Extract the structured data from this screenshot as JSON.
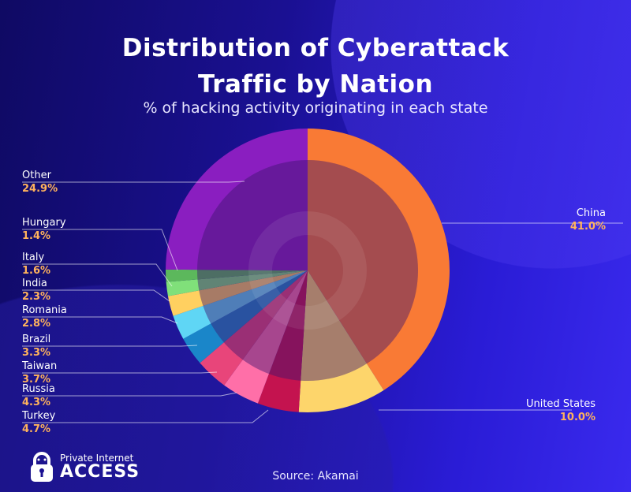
{
  "chart_data": {
    "type": "pie",
    "title_line1": "Distribution of Cyberattack",
    "title_line2": "Traffic by Nation",
    "subtitle": "% of hacking activity originating in each state",
    "source": "Source:  Akamai",
    "slices": [
      {
        "label": "China",
        "value": 41.0,
        "display": "41.0%",
        "color": "#f97a35"
      },
      {
        "label": "United States",
        "value": 10.0,
        "display": "10.0%",
        "color": "#fdd56b"
      },
      {
        "label": "Turkey",
        "value": 4.7,
        "display": "4.7%",
        "color": "#c4134f"
      },
      {
        "label": "Russia",
        "value": 4.3,
        "display": "4.3%",
        "color": "#ff6fa8"
      },
      {
        "label": "Taiwan",
        "value": 3.7,
        "display": "3.7%",
        "color": "#e8457a"
      },
      {
        "label": "Brazil",
        "value": 3.3,
        "display": "3.3%",
        "color": "#1a86c9"
      },
      {
        "label": "Romania",
        "value": 2.8,
        "display": "2.8%",
        "color": "#5fd6f5"
      },
      {
        "label": "India",
        "value": 2.3,
        "display": "2.3%",
        "color": "#ffd060"
      },
      {
        "label": "Italy",
        "value": 1.6,
        "display": "1.6%",
        "color": "#80e07a"
      },
      {
        "label": "Hungary",
        "value": 1.4,
        "display": "1.4%",
        "color": "#5cb85c"
      },
      {
        "label": "Other",
        "value": 24.9,
        "display": "24.9%",
        "color": "#8a1ec0"
      }
    ]
  },
  "logo": {
    "line1": "Private Internet",
    "line2": "ACCESS"
  }
}
